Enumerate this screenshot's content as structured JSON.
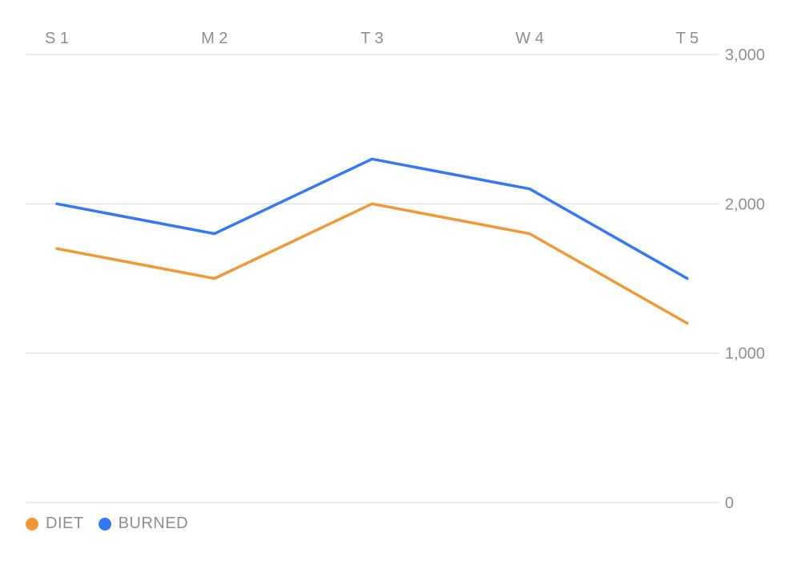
{
  "chart_data": {
    "type": "line",
    "x": [
      "S 1",
      "M 2",
      "T 3",
      "W 4",
      "T 5"
    ],
    "series": [
      {
        "name": "DIET",
        "values": [
          1700,
          1500,
          2000,
          1800,
          1200
        ],
        "color": "#f09a37"
      },
      {
        "name": "BURNED",
        "values": [
          2000,
          1800,
          2300,
          2100,
          1500
        ],
        "color": "#3478f6"
      }
    ],
    "ylim": [
      0,
      3000
    ],
    "yticks": [
      0,
      1000,
      2000,
      3000
    ],
    "ytick_labels": [
      "0",
      "1,000",
      "2,000",
      "3,000"
    ],
    "y_axis_side": "right",
    "x_axis_side": "top",
    "grid": true,
    "legend_placement": "bottom-left"
  }
}
